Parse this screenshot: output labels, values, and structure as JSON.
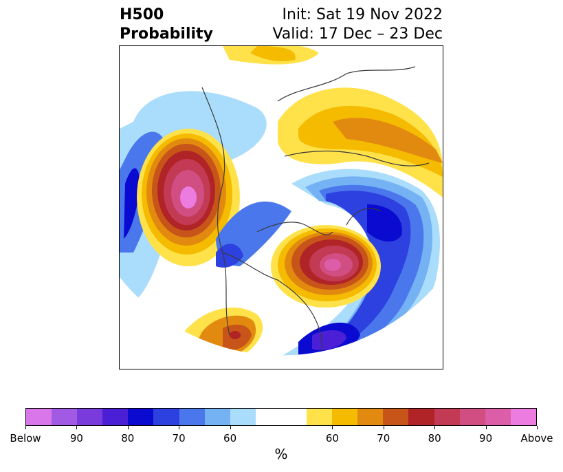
{
  "title": {
    "left_line1": "H500",
    "left_line2": "Probability",
    "right_line1": "Init: Sat 19 Nov 2022",
    "right_line2": "Valid: 17 Dec – 23 Dec"
  },
  "map": {
    "projection": "polar stereographic (north pole view)",
    "field": "500 hPa height probability"
  },
  "colorbar": {
    "unit_label": "%",
    "tick_labels": [
      "Below",
      "90",
      "80",
      "70",
      "60",
      "60",
      "70",
      "80",
      "90",
      "Above"
    ],
    "colors": [
      "#d977ea",
      "#a259e3",
      "#7a3bdc",
      "#4b1fd5",
      "#0a0ad0",
      "#2d40e0",
      "#4a78ec",
      "#75b2f4",
      "#aadcfb",
      "#ffffff",
      "#ffffff",
      "#ffe24a",
      "#f5bb00",
      "#e28a10",
      "#c75418",
      "#b02427",
      "#c33a54",
      "#d04e82",
      "#dd5ea8",
      "#ec7ce0"
    ]
  }
}
